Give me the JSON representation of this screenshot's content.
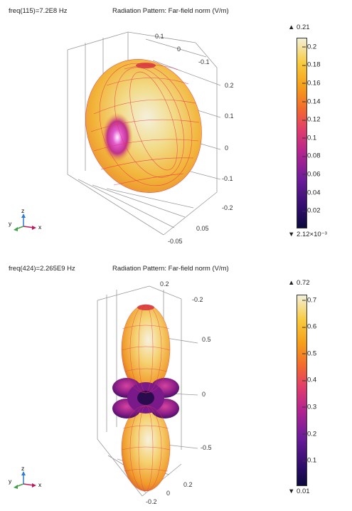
{
  "colors": {
    "grid": "#888888",
    "mesh": "#e8364a",
    "tick_text": "#333333"
  },
  "plots": [
    {
      "freq_label": "freq(115)=7.2E8 Hz",
      "title": "Radiation Pattern: Far-field norm (V/m)",
      "colorbar": {
        "max_label": "▲ 0.21",
        "min_label": "▼ 2.12×10⁻³",
        "min": 0.00212,
        "max": 0.21,
        "ticks": [
          "0.2",
          "0.18",
          "0.16",
          "0.14",
          "0.12",
          "0.1",
          "0.08",
          "0.06",
          "0.04",
          "0.02"
        ],
        "tick_values": [
          0.2,
          0.18,
          0.16,
          0.14,
          0.12,
          0.1,
          0.08,
          0.06,
          0.04,
          0.02
        ]
      },
      "axis_labels": [
        "0.1",
        "0",
        "-0.1",
        "0.2",
        "0.1",
        "0",
        "-0.1",
        "-0.2",
        "0.05",
        "-0.05"
      ],
      "triad": {
        "z": "z",
        "y": "y",
        "x": "x"
      }
    },
    {
      "freq_label": "freq(424)=2.265E9 Hz",
      "title": "Radiation Pattern: Far-field norm (V/m)",
      "colorbar": {
        "max_label": "▲ 0.72",
        "min_label": "▼ 0.01",
        "min": 0.01,
        "max": 0.72,
        "ticks": [
          "0.7",
          "0.6",
          "0.5",
          "0.4",
          "0.3",
          "0.2",
          "0.1"
        ],
        "tick_values": [
          0.7,
          0.6,
          0.5,
          0.4,
          0.3,
          0.2,
          0.1
        ]
      },
      "axis_labels": [
        "0.2",
        "-0.2",
        "0.5",
        "0",
        "-0.5",
        "0.2",
        "0",
        "-0.2"
      ],
      "triad": {
        "z": "z",
        "y": "y",
        "x": "x"
      }
    }
  ],
  "chart_data": [
    {
      "type": "3d-surface",
      "title": "Radiation Pattern: Far-field norm (V/m)",
      "subtitle": "freq(115)=7.2E8 Hz",
      "color_range": [
        0.00212,
        0.21
      ]
    },
    {
      "type": "3d-surface",
      "title": "Radiation Pattern: Far-field norm (V/m)",
      "subtitle": "freq(424)=2.265E9 Hz",
      "color_range": [
        0.01,
        0.72
      ]
    }
  ]
}
